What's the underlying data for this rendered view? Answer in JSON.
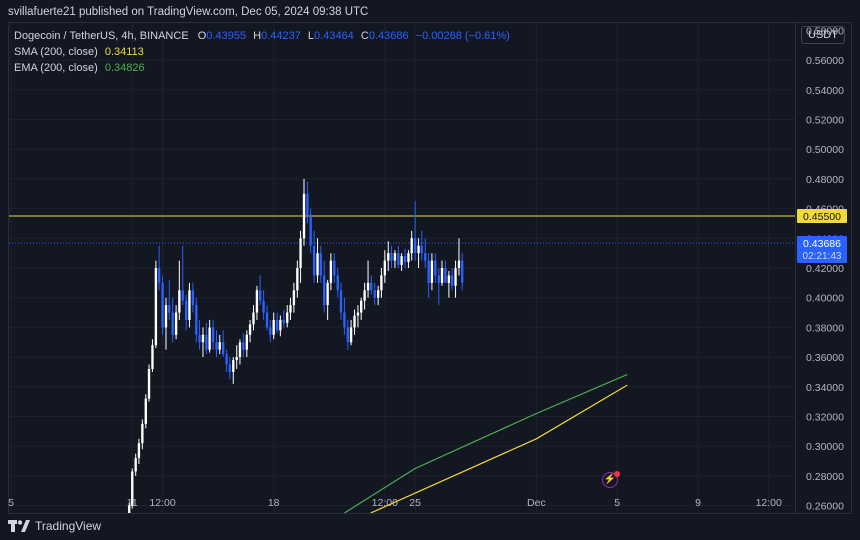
{
  "header": {
    "publisher": "svillafuerte21 published on TradingView.com, Dec 05, 2024 09:38 UTC"
  },
  "legend": {
    "symbol": "Dogecoin / TetherUS, 4h, BINANCE",
    "o_label": "O",
    "o_value": "0.43955",
    "h_label": "H",
    "h_value": "0.44237",
    "l_label": "L",
    "l_value": "0.43464",
    "c_label": "C",
    "c_value": "0.43686",
    "change": "−0.00268 (−0.61%)",
    "sma_label": "SMA (200, close)",
    "sma_value": "0.34113",
    "ema_label": "EMA (200, close)",
    "ema_value": "0.34826"
  },
  "currency": "USDT",
  "brand": "TradingView",
  "colors": {
    "background": "#131722",
    "up": "#ffffff",
    "down": "#2962ff",
    "sma": "#f2d93a",
    "ema": "#4caf50",
    "level_line": "#f2d93a",
    "last_price": "#2962ff",
    "grid": "#1e222d"
  },
  "chart_data": {
    "type": "candlestick",
    "symbol": "Dogecoin / TetherUS",
    "interval": "4h",
    "exchange": "BINANCE",
    "ylim": [
      0.255,
      0.585
    ],
    "y_ticks": [
      "0.56000",
      "0.54000",
      "0.52000",
      "0.50000",
      "0.48000",
      "0.46000",
      "0.44000",
      "0.42000",
      "0.40000",
      "0.38000",
      "0.36000",
      "0.34000",
      "0.32000",
      "0.30000",
      "0.28000",
      "0.26000"
    ],
    "y_tick_values": [
      0.56,
      0.54,
      0.52,
      0.5,
      0.48,
      0.46,
      0.44,
      0.42,
      0.4,
      0.38,
      0.36,
      0.34,
      0.32,
      0.3,
      0.28,
      0.26
    ],
    "top_clipped_label": "0.58000",
    "x_ticks": [
      {
        "label": "5",
        "t": 0
      },
      {
        "label": "11",
        "t": 6
      },
      {
        "label": "12:00",
        "t": 7.5
      },
      {
        "label": "18",
        "t": 13
      },
      {
        "label": "12:00",
        "t": 18.5
      },
      {
        "label": "25",
        "t": 20
      },
      {
        "label": "Dec",
        "t": 26
      },
      {
        "label": "5",
        "t": 30
      },
      {
        "label": "9",
        "t": 34
      },
      {
        "label": "12:00",
        "t": 37.5
      }
    ],
    "x_range": [
      -0.1,
      38.8
    ],
    "horizontal_level": {
      "value": 0.455,
      "label": "0.45500"
    },
    "last_price": {
      "value": 0.43686,
      "label": "0.43686",
      "countdown": "02:21:43"
    },
    "candles": [
      [
        5.85,
        0.252,
        0.262,
        0.25,
        0.26
      ],
      [
        6.0,
        0.26,
        0.285,
        0.258,
        0.283
      ],
      [
        6.17,
        0.283,
        0.295,
        0.28,
        0.292
      ],
      [
        6.33,
        0.292,
        0.305,
        0.288,
        0.302
      ],
      [
        6.5,
        0.302,
        0.318,
        0.298,
        0.315
      ],
      [
        6.67,
        0.315,
        0.335,
        0.312,
        0.332
      ],
      [
        6.83,
        0.332,
        0.355,
        0.33,
        0.352
      ],
      [
        7.0,
        0.352,
        0.372,
        0.35,
        0.368
      ],
      [
        7.17,
        0.368,
        0.425,
        0.366,
        0.42
      ],
      [
        7.33,
        0.42,
        0.435,
        0.405,
        0.41
      ],
      [
        7.5,
        0.41,
        0.415,
        0.375,
        0.38
      ],
      [
        7.67,
        0.38,
        0.4,
        0.365,
        0.395
      ],
      [
        7.83,
        0.395,
        0.412,
        0.385,
        0.39
      ],
      [
        8.0,
        0.39,
        0.4,
        0.37,
        0.375
      ],
      [
        8.17,
        0.375,
        0.395,
        0.372,
        0.39
      ],
      [
        8.33,
        0.39,
        0.425,
        0.385,
        0.405
      ],
      [
        8.5,
        0.405,
        0.435,
        0.395,
        0.398
      ],
      [
        8.67,
        0.398,
        0.402,
        0.378,
        0.385
      ],
      [
        8.83,
        0.385,
        0.41,
        0.38,
        0.405
      ],
      [
        9.0,
        0.405,
        0.41,
        0.39,
        0.395
      ],
      [
        9.17,
        0.395,
        0.4,
        0.37,
        0.375
      ],
      [
        9.33,
        0.375,
        0.385,
        0.365,
        0.37
      ],
      [
        9.5,
        0.37,
        0.38,
        0.36,
        0.375
      ],
      [
        9.67,
        0.375,
        0.383,
        0.362,
        0.365
      ],
      [
        9.83,
        0.365,
        0.385,
        0.363,
        0.38
      ],
      [
        10.0,
        0.38,
        0.385,
        0.365,
        0.37
      ],
      [
        10.17,
        0.37,
        0.378,
        0.36,
        0.365
      ],
      [
        10.33,
        0.365,
        0.375,
        0.362,
        0.37
      ],
      [
        10.5,
        0.37,
        0.378,
        0.36,
        0.362
      ],
      [
        10.67,
        0.362,
        0.365,
        0.35,
        0.355
      ],
      [
        10.83,
        0.355,
        0.36,
        0.345,
        0.35
      ],
      [
        11.0,
        0.35,
        0.36,
        0.342,
        0.358
      ],
      [
        11.17,
        0.358,
        0.368,
        0.352,
        0.36
      ],
      [
        11.33,
        0.36,
        0.372,
        0.355,
        0.37
      ],
      [
        11.5,
        0.37,
        0.376,
        0.36,
        0.365
      ],
      [
        11.67,
        0.365,
        0.378,
        0.36,
        0.375
      ],
      [
        11.83,
        0.375,
        0.385,
        0.37,
        0.382
      ],
      [
        12.0,
        0.382,
        0.395,
        0.378,
        0.39
      ],
      [
        12.17,
        0.39,
        0.408,
        0.385,
        0.405
      ],
      [
        12.33,
        0.405,
        0.415,
        0.395,
        0.398
      ],
      [
        12.5,
        0.398,
        0.405,
        0.385,
        0.39
      ],
      [
        12.67,
        0.39,
        0.395,
        0.378,
        0.38
      ],
      [
        12.83,
        0.38,
        0.385,
        0.37,
        0.375
      ],
      [
        13.0,
        0.375,
        0.39,
        0.372,
        0.385
      ],
      [
        13.17,
        0.385,
        0.39,
        0.376,
        0.378
      ],
      [
        13.33,
        0.378,
        0.388,
        0.374,
        0.385
      ],
      [
        13.5,
        0.385,
        0.392,
        0.38,
        0.383
      ],
      [
        13.67,
        0.383,
        0.395,
        0.38,
        0.39
      ],
      [
        13.83,
        0.39,
        0.4,
        0.385,
        0.395
      ],
      [
        14.0,
        0.395,
        0.41,
        0.39,
        0.405
      ],
      [
        14.17,
        0.405,
        0.425,
        0.4,
        0.42
      ],
      [
        14.33,
        0.42,
        0.445,
        0.41,
        0.44
      ],
      [
        14.5,
        0.44,
        0.48,
        0.435,
        0.47
      ],
      [
        14.67,
        0.47,
        0.478,
        0.45,
        0.455
      ],
      [
        14.83,
        0.455,
        0.46,
        0.43,
        0.435
      ],
      [
        15.0,
        0.435,
        0.445,
        0.41,
        0.415
      ],
      [
        15.17,
        0.415,
        0.44,
        0.41,
        0.43
      ],
      [
        15.33,
        0.43,
        0.435,
        0.41,
        0.415
      ],
      [
        15.5,
        0.415,
        0.425,
        0.39,
        0.395
      ],
      [
        15.67,
        0.395,
        0.412,
        0.385,
        0.41
      ],
      [
        15.83,
        0.41,
        0.43,
        0.405,
        0.425
      ],
      [
        16.0,
        0.425,
        0.43,
        0.41,
        0.415
      ],
      [
        16.17,
        0.415,
        0.42,
        0.4,
        0.405
      ],
      [
        16.33,
        0.405,
        0.41,
        0.385,
        0.39
      ],
      [
        16.5,
        0.39,
        0.4,
        0.375,
        0.38
      ],
      [
        16.67,
        0.38,
        0.385,
        0.365,
        0.37
      ],
      [
        16.83,
        0.37,
        0.385,
        0.368,
        0.38
      ],
      [
        17.0,
        0.38,
        0.392,
        0.375,
        0.388
      ],
      [
        17.17,
        0.388,
        0.395,
        0.38,
        0.39
      ],
      [
        17.33,
        0.39,
        0.4,
        0.385,
        0.398
      ],
      [
        17.5,
        0.398,
        0.41,
        0.392,
        0.405
      ],
      [
        17.67,
        0.405,
        0.425,
        0.4,
        0.41
      ],
      [
        17.83,
        0.41,
        0.415,
        0.402,
        0.405
      ],
      [
        18.0,
        0.405,
        0.41,
        0.395,
        0.4
      ],
      [
        18.17,
        0.4,
        0.408,
        0.395,
        0.405
      ],
      [
        18.33,
        0.405,
        0.42,
        0.4,
        0.415
      ],
      [
        18.5,
        0.415,
        0.432,
        0.41,
        0.425
      ],
      [
        18.67,
        0.425,
        0.438,
        0.418,
        0.43
      ],
      [
        18.83,
        0.43,
        0.435,
        0.42,
        0.425
      ],
      [
        19.0,
        0.425,
        0.432,
        0.42,
        0.43
      ],
      [
        19.17,
        0.43,
        0.435,
        0.42,
        0.422
      ],
      [
        19.33,
        0.422,
        0.43,
        0.418,
        0.428
      ],
      [
        19.5,
        0.428,
        0.433,
        0.42,
        0.424
      ],
      [
        19.67,
        0.424,
        0.432,
        0.42,
        0.43
      ],
      [
        19.83,
        0.43,
        0.445,
        0.425,
        0.44
      ],
      [
        20.0,
        0.44,
        0.465,
        0.425,
        0.43
      ],
      [
        20.17,
        0.43,
        0.44,
        0.42,
        0.435
      ],
      [
        20.33,
        0.435,
        0.445,
        0.425,
        0.43
      ],
      [
        20.5,
        0.43,
        0.44,
        0.42,
        0.425
      ],
      [
        20.67,
        0.425,
        0.43,
        0.4,
        0.41
      ],
      [
        20.83,
        0.41,
        0.43,
        0.405,
        0.425
      ],
      [
        21.0,
        0.425,
        0.43,
        0.41,
        0.415
      ],
      [
        21.17,
        0.415,
        0.42,
        0.395,
        0.41
      ],
      [
        21.33,
        0.41,
        0.425,
        0.408,
        0.42
      ],
      [
        21.5,
        0.42,
        0.425,
        0.41,
        0.41
      ],
      [
        21.67,
        0.41,
        0.418,
        0.4,
        0.415
      ],
      [
        21.83,
        0.415,
        0.42,
        0.405,
        0.408
      ],
      [
        22.0,
        0.408,
        0.425,
        0.4,
        0.42
      ],
      [
        22.17,
        0.42,
        0.44,
        0.415,
        0.425
      ],
      [
        22.33,
        0.425,
        0.43,
        0.405,
        0.41
      ]
    ],
    "sma": {
      "name": "SMA (200, close)",
      "points": [
        [
          17.8,
          0.255
        ],
        [
          26,
          0.305
        ],
        [
          30.5,
          0.34113
        ]
      ]
    },
    "ema": {
      "name": "EMA (200, close)",
      "points": [
        [
          16.5,
          0.255
        ],
        [
          20,
          0.285
        ],
        [
          26,
          0.322
        ],
        [
          30.5,
          0.34826
        ]
      ]
    }
  }
}
